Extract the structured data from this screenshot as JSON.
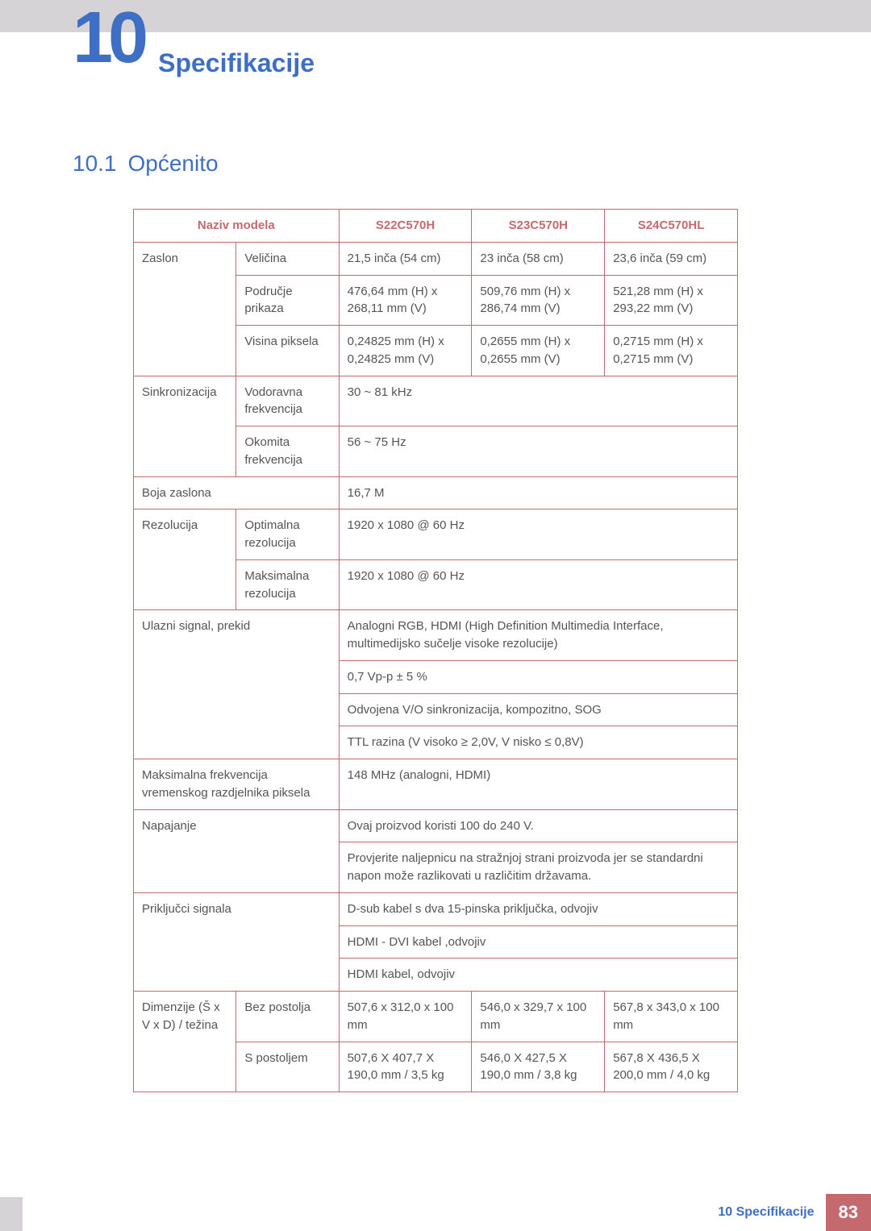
{
  "header": {
    "chapter_number": "10",
    "chapter_title": "Specifikacije"
  },
  "section": {
    "number": "10.1",
    "title": "Općenito"
  },
  "footer": {
    "label": "10 Specifikacije",
    "page": "83"
  },
  "colors": {
    "accent_blue": "#3f6fc4",
    "accent_red": "#c46a6f",
    "top_bar_bg": "#d6d3d6",
    "text": "#555555",
    "page_bg": "#ffffff"
  },
  "table": {
    "headers": {
      "model_name_label": "Naziv modela",
      "m1": "S22C570H",
      "m2": "S23C570H",
      "m3": "S24C570HL"
    },
    "rows": {
      "zaslon": "Zaslon",
      "velicina": "Veličina",
      "velicina_m1": "21,5 inča (54 cm)",
      "velicina_m2": "23 inča (58 cm)",
      "velicina_m3": "23,6 inča (59 cm)",
      "podrucje": "Područje prikaza",
      "podrucje_m1": "476,64 mm (H) x 268,11 mm (V)",
      "podrucje_m2": "509,76 mm (H) x 286,74 mm (V)",
      "podrucje_m3": "521,28 mm (H) x 293,22 mm (V)",
      "visina_piksela": "Visina piksela",
      "visina_m1": "0,24825 mm (H) x 0,24825 mm (V)",
      "visina_m2": "0,2655 mm (H) x 0,2655 mm (V)",
      "visina_m3": "0,2715 mm (H) x 0,2715 mm (V)",
      "sinkro": "Sinkronizacija",
      "vodoravna": "Vodoravna frekvencija",
      "vodoravna_v": "30 ~ 81 kHz",
      "okomita": "Okomita frekvencija",
      "okomita_v": "56 ~ 75 Hz",
      "boja": "Boja zaslona",
      "boja_v": "16,7 M",
      "rezolucija": "Rezolucija",
      "opt_rez": "Optimalna rezolucija",
      "opt_rez_v": "1920 x 1080 @ 60 Hz",
      "max_rez": "Maksimalna rezolucija",
      "max_rez_v": "1920 x 1080 @ 60 Hz",
      "ulazni": "Ulazni signal, prekid",
      "ulazni_1": "Analogni RGB, HDMI (High Definition Multimedia Interface, multimedijsko sučelje visoke rezolucije)",
      "ulazni_2": "0,7 Vp-p ± 5 %",
      "ulazni_3": "Odvojena V/O sinkronizacija, kompozitno, SOG",
      "ulazni_4": "TTL razina (V visoko ≥ 2,0V, V nisko ≤ 0,8V)",
      "maxfrek": "Maksimalna frekvencija vremenskog razdjelnika piksela",
      "maxfrek_v": "148 MHz (analogni, HDMI)",
      "napajanje": "Napajanje",
      "napajanje_1": "Ovaj proizvod koristi 100 do 240 V.",
      "napajanje_2": "Provjerite naljepnicu na stražnjoj strani proizvoda jer se standardni napon može razlikovati u različitim državama.",
      "prikljucci": "Priključci signala",
      "prik_1": "D-sub kabel s dva 15-pinska priključka, odvojiv",
      "prik_2": "HDMI - DVI kabel ,odvojiv",
      "prik_3": "HDMI kabel, odvojiv",
      "dimenzije": "Dimenzije (Š x V x D) / težina",
      "bez": "Bez postolja",
      "bez_m1": "507,6 x 312,0 x 100 mm",
      "bez_m2": "546,0 x 329,7 x 100 mm",
      "bez_m3": "567,8 x 343,0 x 100 mm",
      "spost": "S postoljem",
      "spost_m1": "507,6 X 407,7 X 190,0 mm / 3,5 kg",
      "spost_m2": "546,0 X 427,5 X 190,0 mm / 3,8 kg",
      "spost_m3": "567,8 X 436,5 X 200,0 mm / 4,0 kg"
    }
  }
}
